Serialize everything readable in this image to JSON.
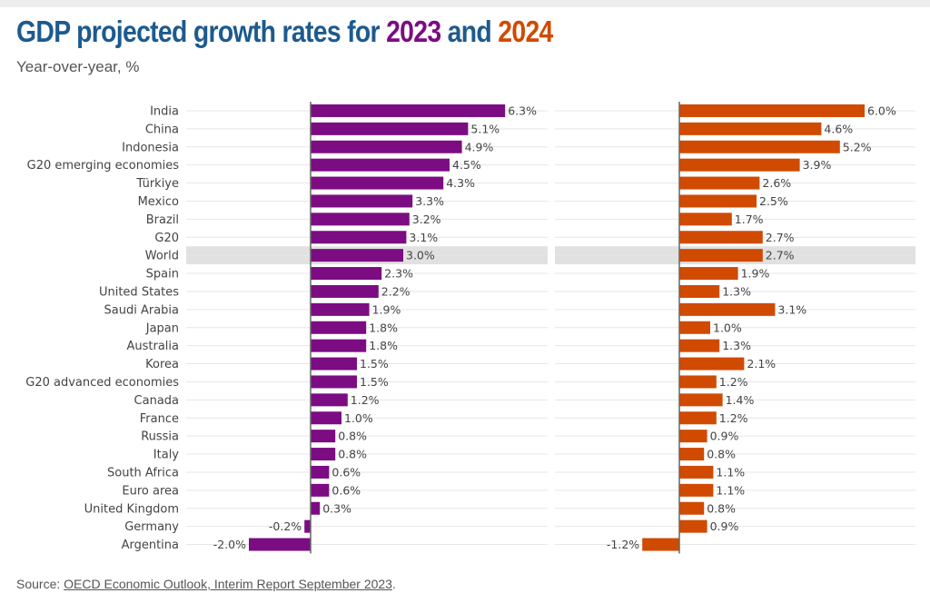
{
  "header": {
    "title_prefix": "GDP projected growth rates for ",
    "year_a": "2023",
    "title_middle": " and ",
    "year_b": "2024",
    "subtitle": "Year-over-year, %"
  },
  "colors": {
    "title": "#1d5a8e",
    "series_2023": "#7b0c82",
    "series_2024": "#d04a02",
    "highlight_row": "#e1e1e1",
    "grid": "#e6e6e6",
    "axis": "#666666"
  },
  "chart_data": {
    "type": "bar",
    "orientation": "horizontal",
    "title": "GDP projected growth rates for 2023 and 2024",
    "subtitle": "Year-over-year, %",
    "categories": [
      "India",
      "China",
      "Indonesia",
      "G20 emerging economies",
      "Türkiye",
      "Mexico",
      "Brazil",
      "G20",
      "World",
      "Spain",
      "United States",
      "Saudi Arabia",
      "Japan",
      "Australia",
      "Korea",
      "G20 advanced economies",
      "Canada",
      "France",
      "Russia",
      "Italy",
      "South Africa",
      "Euro area",
      "United Kingdom",
      "Germany",
      "Argentina"
    ],
    "highlighted_category": "World",
    "series": [
      {
        "name": "2023",
        "values": [
          6.3,
          5.1,
          4.9,
          4.5,
          4.3,
          3.3,
          3.2,
          3.1,
          3.0,
          2.3,
          2.2,
          1.9,
          1.8,
          1.8,
          1.5,
          1.5,
          1.2,
          1.0,
          0.8,
          0.8,
          0.6,
          0.6,
          0.3,
          -0.2,
          -2.0
        ],
        "labels": [
          "6.3%",
          "5.1%",
          "4.9%",
          "4.5%",
          "4.3%",
          "3.3%",
          "3.2%",
          "3.1%",
          "3.0%",
          "2.3%",
          "2.2%",
          "1.9%",
          "1.8%",
          "1.8%",
          "1.5%",
          "1.5%",
          "1.2%",
          "1.0%",
          "0.8%",
          "0.8%",
          "0.6%",
          "0.6%",
          "0.3%",
          "-0.2%",
          "-2.0%"
        ]
      },
      {
        "name": "2024",
        "values": [
          6.0,
          4.6,
          5.2,
          3.9,
          2.6,
          2.5,
          1.7,
          2.7,
          2.7,
          1.9,
          1.3,
          3.1,
          1.0,
          1.3,
          2.1,
          1.2,
          1.4,
          1.2,
          0.9,
          0.8,
          1.1,
          1.1,
          0.8,
          0.9,
          -1.2
        ],
        "labels": [
          "6.0%",
          "4.6%",
          "5.2%",
          "3.9%",
          "2.6%",
          "2.5%",
          "1.7%",
          "2.7%",
          "2.7%",
          "1.9%",
          "1.3%",
          "3.1%",
          "1.0%",
          "1.3%",
          "2.1%",
          "1.2%",
          "1.4%",
          "1.2%",
          "0.9%",
          "0.8%",
          "1.1%",
          "1.1%",
          "0.8%",
          "0.9%",
          "-1.2%"
        ]
      }
    ],
    "xlim": [
      -2.5,
      7.0
    ],
    "xlabel": "",
    "ylabel": "",
    "grid": true,
    "legend": "none (years encoded by colour in title)"
  },
  "footer": {
    "source_label": "Source: ",
    "source_link": "OECD Economic Outlook, Interim Report September 2023",
    "source_end": "."
  }
}
